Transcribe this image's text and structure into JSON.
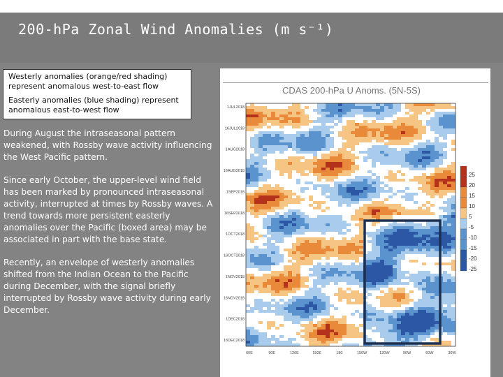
{
  "slide": {
    "title": "200-hPa Zonal Wind Anomalies (m s⁻¹)",
    "legend": {
      "westerly": "Westerly anomalies (orange/red shading) represent anomalous west-to-east flow",
      "easterly": "Easterly anomalies (blue shading) represent anomalous east-to-west flow"
    },
    "paragraphs": [
      "During August the intraseasonal pattern weakened, with Rossby wave activity influencing the West Pacific pattern.",
      "Since early October, the upper-level wind field has been marked by pronounced intraseasonal activity, interrupted at times by Rossby waves. A trend towards more persistent easterly anomalies over the Pacific (boxed area) may be associated in part with the base state.",
      "Recently, an envelope of westerly anomalies shifted from the Indian Ocean to the Pacific during December, with the signal briefly interrupted by Rossby wave activity during early December."
    ]
  },
  "figure": {
    "title": "CDAS 200-hPa U Anoms. (5N-5S)",
    "y_labels": [
      "1JUL2018",
      "16JUL2018",
      "1AUG2018",
      "16AUG2018",
      "1SEP2018",
      "16SEP2018",
      "1OCT2018",
      "16OCT2018",
      "1NOV2018",
      "16NOV2018",
      "1DEC2018",
      "16DEC2018"
    ],
    "x_labels": [
      "60E",
      "90E",
      "120E",
      "150E",
      "180",
      "150W",
      "120W",
      "90W",
      "60W",
      "30W"
    ],
    "colorbar": [
      "25",
      "20",
      "15",
      "10",
      "5",
      "-5",
      "-10",
      "-15",
      "-20",
      "-25"
    ],
    "colors": {
      "strong_west": "#b4321c",
      "west": "#e98a3b",
      "weak_west": "#f6c483",
      "weak_east": "#a9ccec",
      "east": "#5b93cf",
      "strong_east": "#2c57a4",
      "box": "#1e3050"
    }
  }
}
